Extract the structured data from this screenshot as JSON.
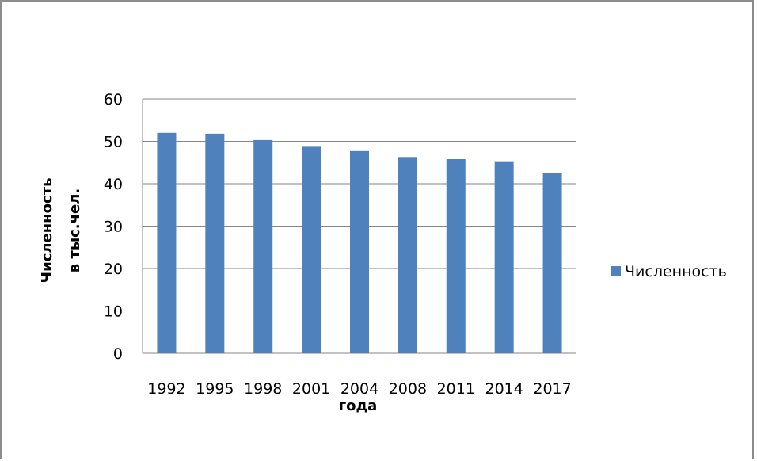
{
  "chart_data": {
    "type": "bar",
    "categories": [
      "1992",
      "1995",
      "1998",
      "2001",
      "2004",
      "2008",
      "2011",
      "2014",
      "2017"
    ],
    "series": [
      {
        "name": "Численность",
        "values": [
          52.0,
          51.8,
          50.3,
          48.9,
          47.7,
          46.3,
          45.8,
          45.3,
          42.5
        ]
      }
    ],
    "ylim": [
      0,
      60
    ],
    "yticks": [
      "0",
      "10",
      "20",
      "30",
      "40",
      "50",
      "60"
    ],
    "xlabel": "года",
    "ylabel_lines": [
      "Численность",
      "в тыс.чел."
    ],
    "grid": true,
    "legend_position": "right",
    "colors": {
      "bar": "#4f81bd",
      "grid": "#868686",
      "frame": "#8c8c8c"
    }
  }
}
